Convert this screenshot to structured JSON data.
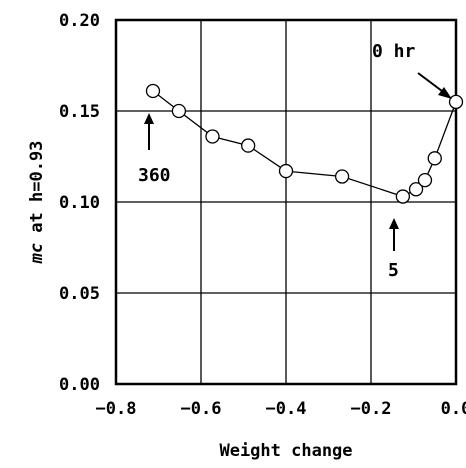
{
  "chart_data": {
    "type": "scatter",
    "xlabel": "Weight change",
    "ylabel_italic": "mc",
    "ylabel_rest": " at h=0.93",
    "xlim": [
      -0.8,
      0.0
    ],
    "ylim": [
      0.0,
      0.2
    ],
    "x_ticks": [
      -0.8,
      -0.6,
      -0.4,
      -0.2,
      0.0
    ],
    "x_tick_labels": [
      "−0.8",
      "−0.6",
      "−0.4",
      "−0.2",
      "0.0"
    ],
    "y_ticks": [
      0.0,
      0.05,
      0.1,
      0.15,
      0.2
    ],
    "y_tick_labels": [
      "0.00",
      "0.05",
      "0.10",
      "0.15",
      "0.20"
    ],
    "grid": true,
    "series": [
      {
        "x": [
          -0.713,
          -0.652,
          -0.573,
          -0.489,
          -0.4,
          -0.268,
          -0.125,
          -0.094,
          -0.073,
          -0.05,
          0.0
        ],
        "y": [
          0.161,
          0.15,
          0.136,
          0.131,
          0.117,
          0.114,
          0.103,
          0.107,
          0.112,
          0.124,
          0.155
        ]
      }
    ],
    "annotations": [
      {
        "text": "0 hr",
        "x": -0.06,
        "y": 0.18
      },
      {
        "text": "360",
        "x": -0.71,
        "y": 0.113
      },
      {
        "text": "5",
        "x": -0.125,
        "y": 0.062
      }
    ]
  }
}
